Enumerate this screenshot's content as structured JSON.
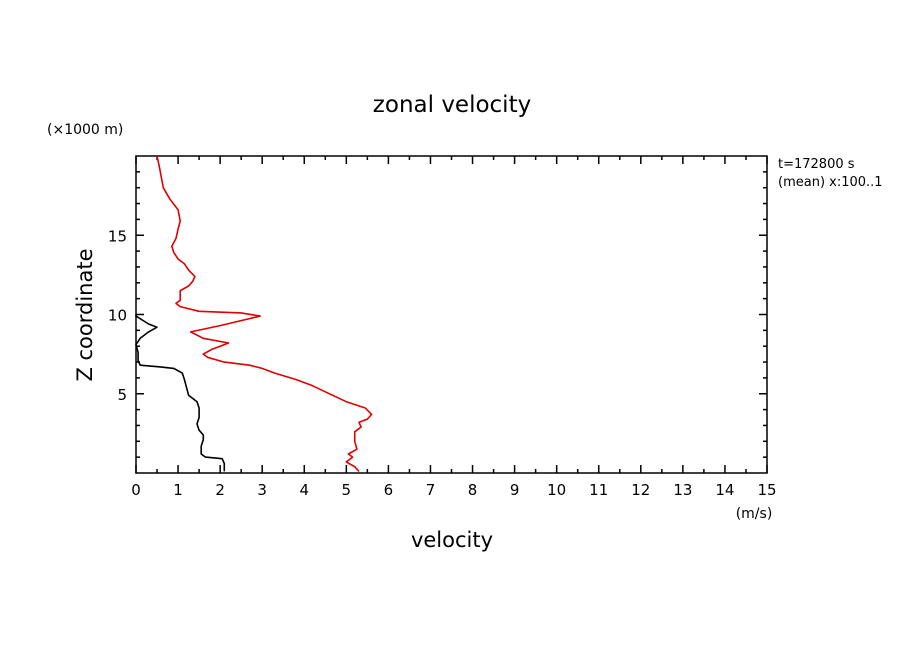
{
  "chart_data": {
    "type": "line",
    "title": "zonal velocity",
    "xlabel": "velocity",
    "ylabel": "Z coordinate",
    "x_unit": "(m/s)",
    "y_unit": "(×1000 m)",
    "annotations": [
      "t=172800 s",
      "(mean) x:100..1"
    ],
    "xlim": [
      0,
      15
    ],
    "ylim": [
      0,
      20
    ],
    "x_ticks": [
      0,
      1,
      2,
      3,
      4,
      5,
      6,
      7,
      8,
      9,
      10,
      11,
      12,
      13,
      14,
      15
    ],
    "y_ticks": [
      5,
      10,
      15
    ],
    "grid": false,
    "series": [
      {
        "color": "#000000",
        "points": [
          [
            2.1,
            0.1
          ],
          [
            2.1,
            0.6
          ],
          [
            2.05,
            0.9
          ],
          [
            1.65,
            1.0
          ],
          [
            1.55,
            1.2
          ],
          [
            1.55,
            1.7
          ],
          [
            1.6,
            2.1
          ],
          [
            1.6,
            2.4
          ],
          [
            1.5,
            2.7
          ],
          [
            1.45,
            3.1
          ],
          [
            1.5,
            3.5
          ],
          [
            1.5,
            4.1
          ],
          [
            1.45,
            4.5
          ],
          [
            1.25,
            4.9
          ],
          [
            1.2,
            5.4
          ],
          [
            1.15,
            5.9
          ],
          [
            1.1,
            6.3
          ],
          [
            0.9,
            6.6
          ],
          [
            0.55,
            6.7
          ],
          [
            0.1,
            6.8
          ],
          [
            0.05,
            7.1
          ],
          [
            0.05,
            7.6
          ],
          [
            0.0,
            8.1
          ],
          [
            0.1,
            8.5
          ],
          [
            0.3,
            8.9
          ],
          [
            0.5,
            9.2
          ],
          [
            0.3,
            9.4
          ],
          [
            0.0,
            9.9
          ],
          [
            0.0,
            10.0
          ]
        ]
      },
      {
        "color": "#e00000",
        "points": [
          [
            5.3,
            0.1
          ],
          [
            5.2,
            0.4
          ],
          [
            5.0,
            0.7
          ],
          [
            5.15,
            1.0
          ],
          [
            5.05,
            1.2
          ],
          [
            5.25,
            1.5
          ],
          [
            5.2,
            2.0
          ],
          [
            5.2,
            2.6
          ],
          [
            5.35,
            2.9
          ],
          [
            5.3,
            3.2
          ],
          [
            5.5,
            3.4
          ],
          [
            5.6,
            3.7
          ],
          [
            5.45,
            4.1
          ],
          [
            5.0,
            4.5
          ],
          [
            4.6,
            5.0
          ],
          [
            4.2,
            5.5
          ],
          [
            3.8,
            5.9
          ],
          [
            3.3,
            6.3
          ],
          [
            3.0,
            6.6
          ],
          [
            2.7,
            6.8
          ],
          [
            2.1,
            7.0
          ],
          [
            1.7,
            7.3
          ],
          [
            1.6,
            7.5
          ],
          [
            1.8,
            7.8
          ],
          [
            2.0,
            8.0
          ],
          [
            2.2,
            8.2
          ],
          [
            1.6,
            8.5
          ],
          [
            1.3,
            8.9
          ],
          [
            2.0,
            9.3
          ],
          [
            2.95,
            9.9
          ],
          [
            2.5,
            10.1
          ],
          [
            1.5,
            10.2
          ],
          [
            1.05,
            10.5
          ],
          [
            0.95,
            10.7
          ],
          [
            1.05,
            10.9
          ],
          [
            1.05,
            11.5
          ],
          [
            1.25,
            11.8
          ],
          [
            1.35,
            12.1
          ],
          [
            1.4,
            12.4
          ],
          [
            1.25,
            12.8
          ],
          [
            1.15,
            13.2
          ],
          [
            1.0,
            13.5
          ],
          [
            0.9,
            13.9
          ],
          [
            0.85,
            14.3
          ],
          [
            0.95,
            14.8
          ],
          [
            1.0,
            15.4
          ],
          [
            1.05,
            15.9
          ],
          [
            1.0,
            16.6
          ],
          [
            0.8,
            17.3
          ],
          [
            0.65,
            18.0
          ],
          [
            0.6,
            18.7
          ],
          [
            0.55,
            19.4
          ],
          [
            0.5,
            20.0
          ]
        ]
      }
    ]
  }
}
